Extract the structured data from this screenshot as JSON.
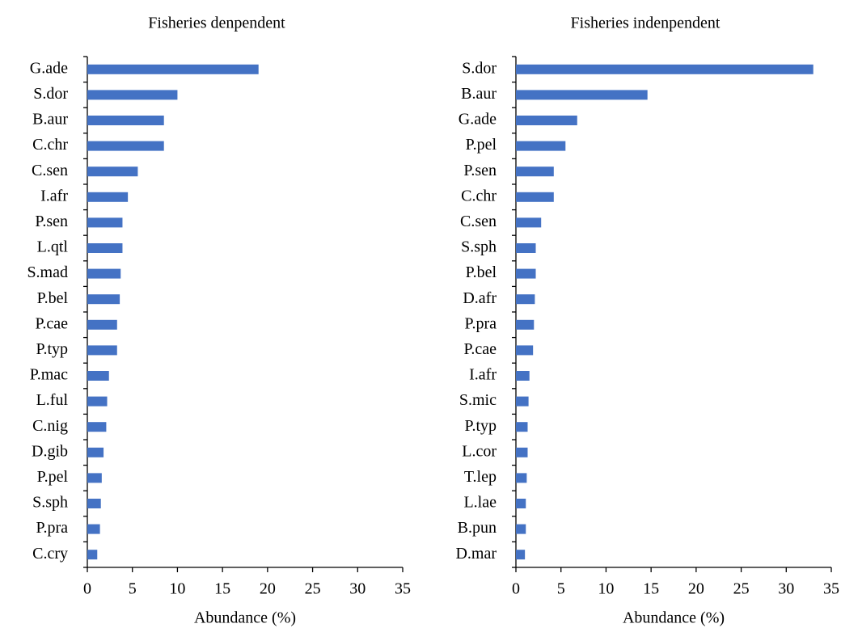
{
  "chart_data": [
    {
      "type": "bar",
      "orientation": "horizontal",
      "title": "Fisheries denpendent",
      "xlabel": "Abundance (%)",
      "color": "#4472c4",
      "categories": [
        "G.ade",
        "S.dor",
        "B.aur",
        "C.chr",
        "C.sen",
        "I.afr",
        "P.sen",
        "L.qtl",
        "S.mad",
        "P.bel",
        "P.cae",
        "P.typ",
        "P.mac",
        "L.ful",
        "C.nig",
        "D.gib",
        "P.pel",
        "S.sph",
        "P.pra",
        "C.cry"
      ],
      "values": [
        19.0,
        10.0,
        8.5,
        8.5,
        5.6,
        4.5,
        3.9,
        3.9,
        3.7,
        3.6,
        3.3,
        3.3,
        2.4,
        2.2,
        2.1,
        1.8,
        1.6,
        1.5,
        1.4,
        1.1
      ],
      "xlim": [
        0,
        35
      ],
      "xticks": [
        0,
        5,
        10,
        15,
        20,
        25,
        30,
        35
      ]
    },
    {
      "type": "bar",
      "orientation": "horizontal",
      "title": "Fisheries indenpendent",
      "xlabel": "Abundance (%)",
      "color": "#4472c4",
      "categories": [
        "S.dor",
        "B.aur",
        "G.ade",
        "P.pel",
        "P.sen",
        "C.chr",
        "C.sen",
        "S.sph",
        "P.bel",
        "D.afr",
        "P.pra",
        "P.cae",
        "I.afr",
        "S.mic",
        "P.typ",
        "L.cor",
        "T.lep",
        "L.lae",
        "B.pun",
        "D.mar"
      ],
      "values": [
        33.0,
        14.6,
        6.8,
        5.5,
        4.2,
        4.2,
        2.8,
        2.2,
        2.2,
        2.1,
        2.0,
        1.9,
        1.5,
        1.4,
        1.3,
        1.3,
        1.2,
        1.1,
        1.1,
        1.0
      ],
      "xlim": [
        0,
        35
      ],
      "xticks": [
        0,
        5,
        10,
        15,
        20,
        25,
        30,
        35
      ]
    }
  ]
}
